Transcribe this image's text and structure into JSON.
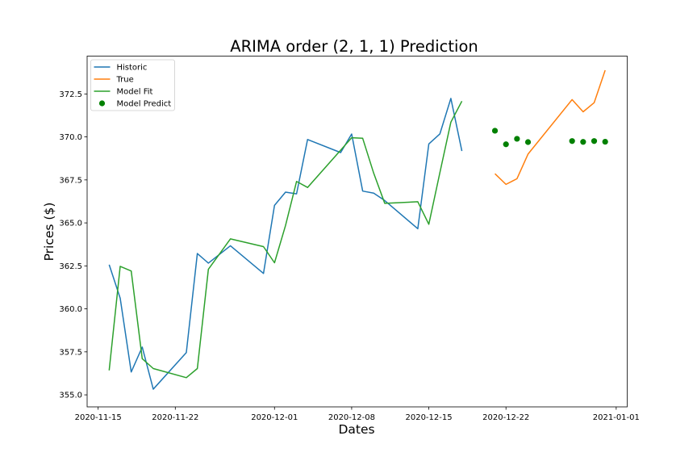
{
  "chart_data": {
    "type": "line",
    "title": "ARIMA order (2, 1, 1) Prediction",
    "xlabel": "Dates",
    "ylabel": "Prices ($)",
    "xlim": [
      "2020-11-14",
      "2021-01-02"
    ],
    "ylim": [
      354.3,
      374.7
    ],
    "x_ticks": [
      "2020-11-15",
      "2020-11-22",
      "2020-12-01",
      "2020-12-08",
      "2020-12-15",
      "2020-12-22",
      "2021-01-01"
    ],
    "y_ticks": [
      355.0,
      357.5,
      360.0,
      362.5,
      365.0,
      367.5,
      370.0,
      372.5
    ],
    "legend_position": "upper-left",
    "series": [
      {
        "name": "Historic",
        "type": "line",
        "color": "#1f77b4",
        "points": [
          [
            "2020-11-16",
            362.57
          ],
          [
            "2020-11-17",
            360.62
          ],
          [
            "2020-11-18",
            356.33
          ],
          [
            "2020-11-19",
            357.78
          ],
          [
            "2020-11-20",
            355.33
          ],
          [
            "2020-11-23",
            357.46
          ],
          [
            "2020-11-24",
            363.22
          ],
          [
            "2020-11-25",
            362.66
          ],
          [
            "2020-11-27",
            363.67
          ],
          [
            "2020-11-30",
            362.06
          ],
          [
            "2020-12-01",
            366.02
          ],
          [
            "2020-12-02",
            366.79
          ],
          [
            "2020-12-03",
            366.69
          ],
          [
            "2020-12-04",
            369.85
          ],
          [
            "2020-12-07",
            369.09
          ],
          [
            "2020-12-08",
            370.17
          ],
          [
            "2020-12-09",
            366.85
          ],
          [
            "2020-12-10",
            366.73
          ],
          [
            "2020-12-11",
            366.3
          ],
          [
            "2020-12-14",
            364.66
          ],
          [
            "2020-12-15",
            369.59
          ],
          [
            "2020-12-16",
            370.17
          ],
          [
            "2020-12-17",
            372.24
          ],
          [
            "2020-12-18",
            369.18
          ]
        ]
      },
      {
        "name": "True",
        "type": "line",
        "color": "#ff7f0e",
        "points": [
          [
            "2020-12-21",
            367.86
          ],
          [
            "2020-12-22",
            367.24
          ],
          [
            "2020-12-23",
            367.57
          ],
          [
            "2020-12-24",
            369.0
          ],
          [
            "2020-12-28",
            372.17
          ],
          [
            "2020-12-29",
            371.46
          ],
          [
            "2020-12-30",
            371.99
          ],
          [
            "2020-12-31",
            373.88
          ]
        ]
      },
      {
        "name": "Model Fit",
        "type": "line",
        "color": "#2ca02c",
        "points": [
          [
            "2020-11-16",
            356.42
          ],
          [
            "2020-11-17",
            362.47
          ],
          [
            "2020-11-18",
            362.2
          ],
          [
            "2020-11-19",
            357.1
          ],
          [
            "2020-11-20",
            356.53
          ],
          [
            "2020-11-23",
            356.0
          ],
          [
            "2020-11-24",
            356.53
          ],
          [
            "2020-11-25",
            362.3
          ],
          [
            "2020-11-27",
            364.07
          ],
          [
            "2020-11-30",
            363.62
          ],
          [
            "2020-12-01",
            362.68
          ],
          [
            "2020-12-02",
            364.85
          ],
          [
            "2020-12-03",
            367.41
          ],
          [
            "2020-12-04",
            367.06
          ],
          [
            "2020-12-08",
            369.95
          ],
          [
            "2020-12-09",
            369.92
          ],
          [
            "2020-12-10",
            367.89
          ],
          [
            "2020-12-11",
            366.14
          ],
          [
            "2020-12-14",
            366.23
          ],
          [
            "2020-12-15",
            364.92
          ],
          [
            "2020-12-16",
            367.91
          ],
          [
            "2020-12-17",
            370.86
          ],
          [
            "2020-12-18",
            372.08
          ]
        ]
      },
      {
        "name": "Model Predict",
        "type": "scatter",
        "color": "#008000",
        "points": [
          [
            "2020-12-21",
            370.36
          ],
          [
            "2020-12-22",
            369.57
          ],
          [
            "2020-12-23",
            369.89
          ],
          [
            "2020-12-24",
            369.7
          ],
          [
            "2020-12-28",
            369.76
          ],
          [
            "2020-12-29",
            369.71
          ],
          [
            "2020-12-30",
            369.76
          ],
          [
            "2020-12-31",
            369.72
          ]
        ]
      }
    ]
  }
}
